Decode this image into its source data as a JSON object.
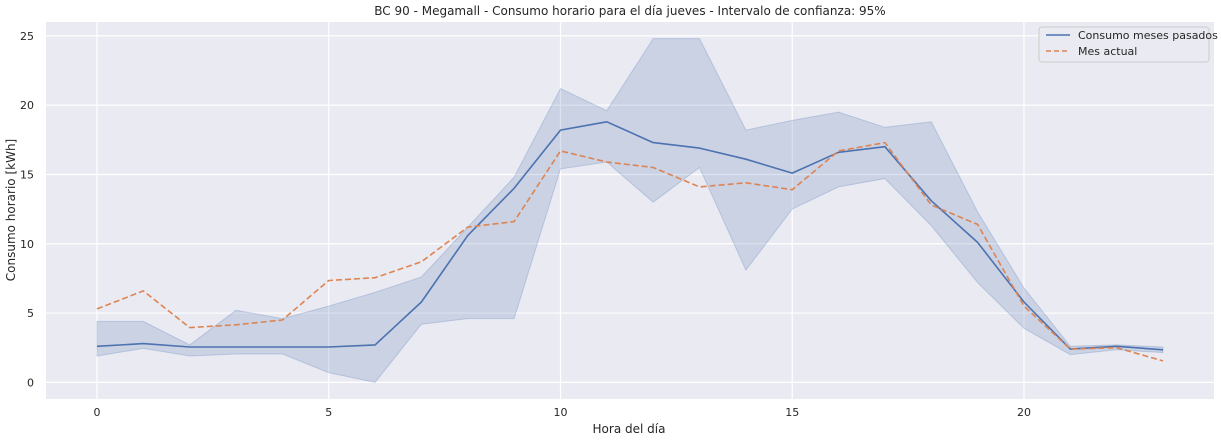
{
  "chart_data": {
    "type": "line",
    "title": "BC 90 - Megamall - Consumo horario para el día jueves - Intervalo de confianza: 95%",
    "xlabel": "Hora del día",
    "ylabel": "Consumo horario [kWh]",
    "xlim": [
      -1.1,
      24.1
    ],
    "ylim": [
      -1.2,
      26
    ],
    "xticks": [
      0,
      5,
      10,
      15,
      20
    ],
    "yticks": [
      0,
      5,
      10,
      15,
      20,
      25
    ],
    "grid": true,
    "legend_position": "top-right",
    "x": [
      0,
      1,
      2,
      3,
      4,
      5,
      6,
      7,
      8,
      9,
      10,
      11,
      12,
      13,
      14,
      15,
      16,
      17,
      18,
      19,
      20,
      21,
      22,
      23
    ],
    "series": [
      {
        "name": "Consumo meses pasados",
        "style": "solid",
        "color": "#4c72b0",
        "values": [
          2.6,
          2.8,
          2.55,
          2.55,
          2.55,
          2.55,
          2.7,
          5.8,
          10.6,
          14.0,
          18.2,
          18.8,
          17.3,
          16.9,
          16.1,
          15.1,
          16.6,
          17.0,
          13.1,
          10.1,
          5.8,
          2.4,
          2.6,
          2.35
        ],
        "ci_lower": [
          1.9,
          2.45,
          1.9,
          2.05,
          2.05,
          0.7,
          0.0,
          4.2,
          4.6,
          4.6,
          15.4,
          15.9,
          13.0,
          15.5,
          8.1,
          12.5,
          14.1,
          14.7,
          11.3,
          7.2,
          3.9,
          2.0,
          2.35,
          2.15
        ],
        "ci_upper": [
          4.4,
          4.4,
          2.7,
          5.2,
          4.6,
          5.5,
          6.5,
          7.6,
          11.2,
          14.8,
          21.2,
          19.6,
          24.8,
          24.8,
          18.2,
          18.9,
          19.5,
          18.4,
          18.8,
          12.3,
          6.8,
          2.6,
          2.7,
          2.55
        ]
      },
      {
        "name": "Mes actual",
        "style": "dashed",
        "color": "#dd8452",
        "values": [
          5.3,
          6.6,
          3.95,
          4.15,
          4.5,
          7.35,
          7.55,
          8.7,
          11.2,
          11.6,
          16.7,
          15.9,
          15.5,
          14.1,
          14.4,
          13.9,
          16.7,
          17.3,
          12.8,
          11.4,
          5.5,
          2.4,
          2.5,
          1.55
        ]
      }
    ]
  }
}
